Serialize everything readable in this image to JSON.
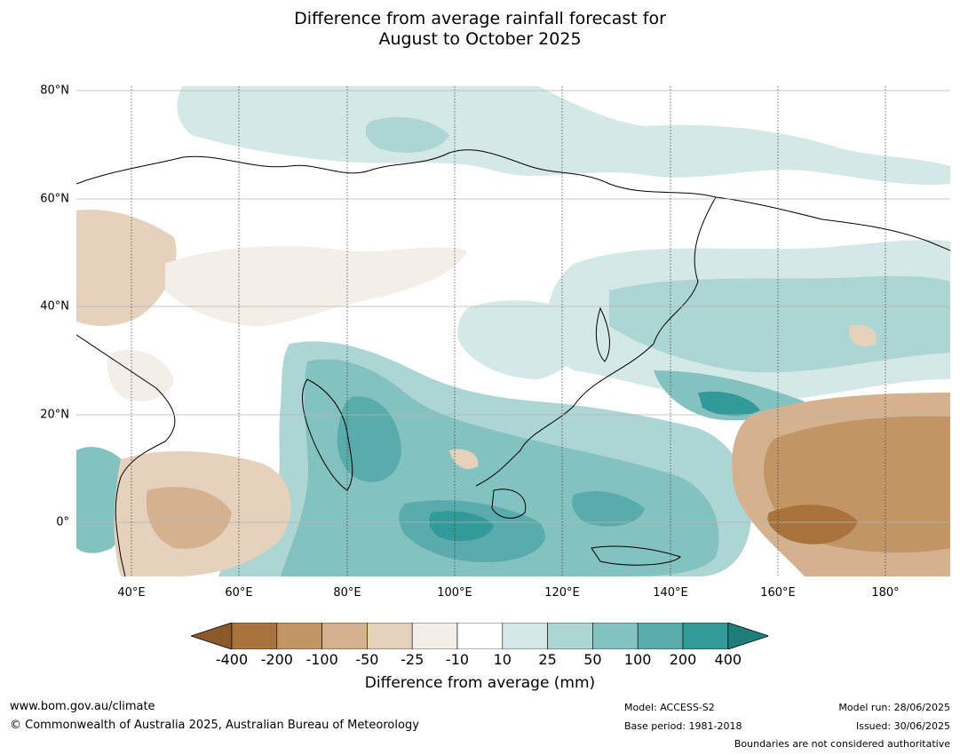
{
  "title_line1": "Difference from average rainfall forecast for",
  "title_line2": "August to October 2025",
  "lat_labels": [
    "80°N",
    "60°N",
    "40°N",
    "20°N",
    "0°"
  ],
  "lon_labels": [
    "40°E",
    "60°E",
    "80°E",
    "100°E",
    "120°E",
    "140°E",
    "160°E",
    "180°"
  ],
  "colorbar": {
    "label": "Difference from average (mm)",
    "ticks": [
      "-400",
      "-200",
      "-100",
      "-50",
      "-25",
      "-10",
      "10",
      "25",
      "50",
      "100",
      "200",
      "400"
    ],
    "colors": [
      "#8c5a2a",
      "#a9733d",
      "#c29566",
      "#d4b28f",
      "#e6d1bd",
      "#f3eee8",
      "#ffffff",
      "#d4e9e7",
      "#acd5d3",
      "#84c2c0",
      "#5aacac",
      "#329a98",
      "#1f7d7a"
    ]
  },
  "footer": {
    "website": "www.bom.gov.au/climate",
    "copyright": "© Commonwealth of Australia 2025, Australian Bureau of Meteorology",
    "model": "Model: ACCESS-S2",
    "base_period": "Base period: 1981-2018",
    "model_run": "Model run: 28/06/2025",
    "issued": "Issued: 30/06/2025",
    "disclaimer": "Boundaries are not considered authoritative"
  }
}
